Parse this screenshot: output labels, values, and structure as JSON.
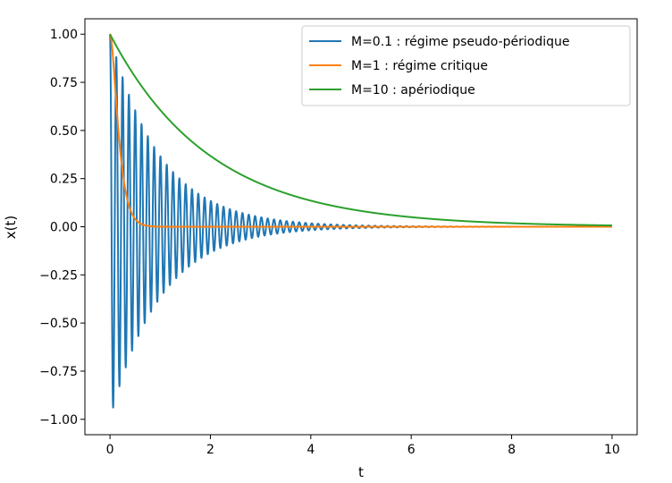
{
  "chart_data": {
    "type": "line",
    "title": "",
    "xlabel": "t",
    "ylabel": "x(t)",
    "xlim": [
      -0.5,
      10.5
    ],
    "ylim": [
      -1.08,
      1.08
    ],
    "xticks": [
      0,
      2,
      4,
      6,
      8,
      10
    ],
    "yticks": [
      1.0,
      0.75,
      0.5,
      0.25,
      0.0,
      -0.25,
      -0.5,
      -0.75,
      -1.0
    ],
    "xtick_labels": [
      "0",
      "2",
      "4",
      "6",
      "8",
      "10"
    ],
    "ytick_labels": [
      "1.00",
      "0.75",
      "0.50",
      "0.25",
      "0.00",
      "−0.25",
      "−0.50",
      "−0.75",
      "−1.00"
    ],
    "grid": false,
    "legend_position": "top-right",
    "series": [
      {
        "name": "M=0.1 : régime pseudo-périodique",
        "color": "#1f77b4",
        "model": "damped-oscillation",
        "x0": 1.0,
        "damping_rate": 1.0,
        "angular_frequency": 50,
        "t_range": [
          0,
          10
        ]
      },
      {
        "name": "M=1 : régime critique",
        "color": "#ff7f0e",
        "model": "critical-damping",
        "x0": 1.0,
        "rate": 10,
        "t_range": [
          0,
          10
        ]
      },
      {
        "name": "M=10 : apériodique",
        "color": "#2ca02c",
        "model": "exponential-decay",
        "x0": 1.0,
        "rate": 0.5,
        "t_range": [
          0,
          10
        ]
      }
    ]
  }
}
